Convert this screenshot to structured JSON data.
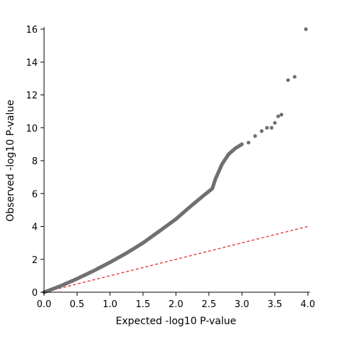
{
  "chart_data": {
    "type": "scatter",
    "title": "",
    "xlabel": "Expected -log10 P-value",
    "ylabel": "Observed -log10 P-value",
    "xlim": [
      0,
      4
    ],
    "ylim": [
      0,
      16
    ],
    "xticks": [
      "0.0",
      "0.5",
      "1.0",
      "1.5",
      "2.0",
      "2.5",
      "3.0",
      "3.5",
      "4.0"
    ],
    "yticks": [
      "0",
      "2",
      "4",
      "6",
      "8",
      "10",
      "12",
      "14",
      "16"
    ],
    "grid": false,
    "legend": "none",
    "point_color": "#707070",
    "reference_line": {
      "style": "dashed",
      "color": "#e0302a",
      "from": [
        0,
        0
      ],
      "to": [
        4,
        4
      ]
    },
    "curve_points": [
      [
        0.0,
        0.0
      ],
      [
        0.25,
        0.38
      ],
      [
        0.5,
        0.82
      ],
      [
        0.75,
        1.3
      ],
      [
        1.0,
        1.82
      ],
      [
        1.25,
        2.38
      ],
      [
        1.5,
        3.0
      ],
      [
        1.75,
        3.72
      ],
      [
        2.0,
        4.45
      ],
      [
        2.2,
        5.15
      ],
      [
        2.4,
        5.82
      ],
      [
        2.55,
        6.3
      ],
      [
        2.6,
        6.9
      ],
      [
        2.7,
        7.8
      ],
      [
        2.8,
        8.4
      ],
      [
        2.9,
        8.75
      ],
      [
        3.0,
        9.0
      ]
    ],
    "outliers": [
      [
        3.1,
        9.1
      ],
      [
        3.2,
        9.5
      ],
      [
        3.3,
        9.8
      ],
      [
        3.38,
        10.0
      ],
      [
        3.45,
        10.0
      ],
      [
        3.5,
        10.3
      ],
      [
        3.55,
        10.7
      ],
      [
        3.6,
        10.8
      ],
      [
        3.7,
        12.9
      ],
      [
        3.8,
        13.1
      ],
      [
        3.97,
        16.0
      ]
    ]
  }
}
